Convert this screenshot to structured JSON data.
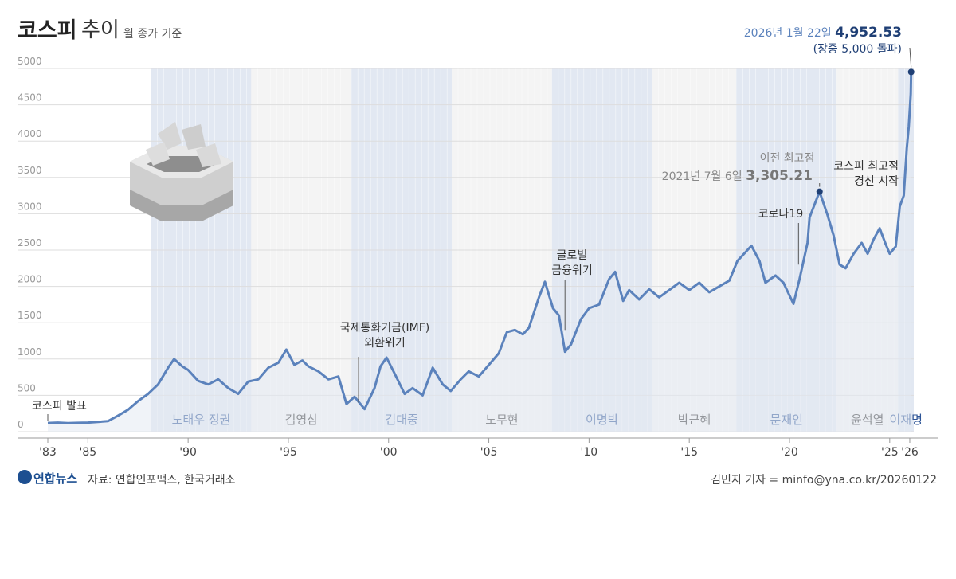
{
  "title": {
    "main": "코스피",
    "sub": "추이",
    "note": "월 종가 기준"
  },
  "footer": {
    "source": "자료: 연합인포맥스, 한국거래소",
    "credit": "김민지 기자 = minfo@yna.co.kr/20260122",
    "logo": "연합뉴스"
  },
  "colors": {
    "line": "#5b82bc",
    "fill": "#e4e9f3",
    "grid": "#dddddd",
    "stripe_light": "#f4f4f4",
    "stripe_blue": "#e2e8f2",
    "accent_dark": "#1f3f75"
  },
  "chart_data": {
    "type": "area",
    "title": "코스피 추이",
    "subtitle": "월 종가 기준",
    "xlabel": "",
    "ylabel": "",
    "xlim": [
      1983,
      2026.2
    ],
    "ylim": [
      0,
      5000
    ],
    "yticks": [
      0,
      500,
      1000,
      1500,
      2000,
      2500,
      3000,
      3500,
      4000,
      4500,
      5000
    ],
    "xticks": [
      {
        "value": 1983,
        "label": "'83"
      },
      {
        "value": 1985,
        "label": "'85"
      },
      {
        "value": 1990,
        "label": "'90"
      },
      {
        "value": 1995,
        "label": "'95"
      },
      {
        "value": 2000,
        "label": "'00"
      },
      {
        "value": 2005,
        "label": "'05"
      },
      {
        "value": 2010,
        "label": "'10"
      },
      {
        "value": 2015,
        "label": "'15"
      },
      {
        "value": 2020,
        "label": "'20"
      },
      {
        "value": 2025,
        "label": "'25"
      },
      {
        "value": 2026,
        "label": "'26"
      }
    ],
    "series": [
      {
        "name": "코스피",
        "points": [
          [
            1983.0,
            120
          ],
          [
            1983.5,
            125
          ],
          [
            1984.0,
            118
          ],
          [
            1984.5,
            122
          ],
          [
            1985.0,
            125
          ],
          [
            1985.5,
            135
          ],
          [
            1986.0,
            145
          ],
          [
            1986.5,
            220
          ],
          [
            1987.0,
            300
          ],
          [
            1987.5,
            420
          ],
          [
            1988.0,
            520
          ],
          [
            1988.5,
            650
          ],
          [
            1989.0,
            880
          ],
          [
            1989.3,
            1000
          ],
          [
            1989.7,
            900
          ],
          [
            1990.0,
            850
          ],
          [
            1990.5,
            700
          ],
          [
            1991.0,
            650
          ],
          [
            1991.5,
            720
          ],
          [
            1992.0,
            600
          ],
          [
            1992.5,
            520
          ],
          [
            1993.0,
            690
          ],
          [
            1993.5,
            720
          ],
          [
            1994.0,
            880
          ],
          [
            1994.5,
            950
          ],
          [
            1994.9,
            1130
          ],
          [
            1995.3,
            920
          ],
          [
            1995.7,
            980
          ],
          [
            1996.0,
            900
          ],
          [
            1996.5,
            830
          ],
          [
            1997.0,
            720
          ],
          [
            1997.5,
            760
          ],
          [
            1997.9,
            380
          ],
          [
            1998.3,
            480
          ],
          [
            1998.8,
            310
          ],
          [
            1999.3,
            600
          ],
          [
            1999.6,
            900
          ],
          [
            1999.9,
            1020
          ],
          [
            2000.3,
            800
          ],
          [
            2000.8,
            520
          ],
          [
            2001.2,
            600
          ],
          [
            2001.7,
            500
          ],
          [
            2002.2,
            880
          ],
          [
            2002.7,
            650
          ],
          [
            2003.1,
            560
          ],
          [
            2003.6,
            720
          ],
          [
            2004.0,
            830
          ],
          [
            2004.5,
            760
          ],
          [
            2005.0,
            920
          ],
          [
            2005.5,
            1080
          ],
          [
            2005.9,
            1370
          ],
          [
            2006.3,
            1400
          ],
          [
            2006.7,
            1340
          ],
          [
            2007.0,
            1430
          ],
          [
            2007.5,
            1850
          ],
          [
            2007.8,
            2064
          ],
          [
            2008.2,
            1700
          ],
          [
            2008.5,
            1600
          ],
          [
            2008.8,
            1100
          ],
          [
            2009.1,
            1200
          ],
          [
            2009.6,
            1550
          ],
          [
            2010.0,
            1700
          ],
          [
            2010.5,
            1750
          ],
          [
            2011.0,
            2100
          ],
          [
            2011.3,
            2200
          ],
          [
            2011.7,
            1800
          ],
          [
            2012.0,
            1950
          ],
          [
            2012.5,
            1820
          ],
          [
            2013.0,
            1960
          ],
          [
            2013.5,
            1850
          ],
          [
            2014.0,
            1950
          ],
          [
            2014.5,
            2050
          ],
          [
            2015.0,
            1950
          ],
          [
            2015.5,
            2050
          ],
          [
            2016.0,
            1920
          ],
          [
            2016.5,
            2000
          ],
          [
            2017.0,
            2080
          ],
          [
            2017.4,
            2350
          ],
          [
            2017.9,
            2500
          ],
          [
            2018.1,
            2560
          ],
          [
            2018.5,
            2350
          ],
          [
            2018.8,
            2050
          ],
          [
            2019.3,
            2150
          ],
          [
            2019.7,
            2050
          ],
          [
            2020.2,
            1760
          ],
          [
            2020.5,
            2100
          ],
          [
            2020.9,
            2600
          ],
          [
            2021.0,
            2950
          ],
          [
            2021.5,
            3305
          ],
          [
            2021.9,
            2980
          ],
          [
            2022.2,
            2700
          ],
          [
            2022.5,
            2300
          ],
          [
            2022.8,
            2250
          ],
          [
            2023.2,
            2450
          ],
          [
            2023.6,
            2600
          ],
          [
            2023.9,
            2450
          ],
          [
            2024.2,
            2650
          ],
          [
            2024.5,
            2800
          ],
          [
            2024.8,
            2580
          ],
          [
            2025.0,
            2450
          ],
          [
            2025.3,
            2550
          ],
          [
            2025.5,
            3100
          ],
          [
            2025.7,
            3250
          ],
          [
            2025.85,
            3900
          ],
          [
            2025.95,
            4200
          ],
          [
            2026.05,
            4650
          ],
          [
            2026.07,
            4952
          ]
        ]
      }
    ],
    "administrations": [
      {
        "name": "노태우 정권",
        "start": 1988.15,
        "end": 1993.15,
        "highlight": true
      },
      {
        "name": "김영삼",
        "start": 1993.15,
        "end": 1998.15,
        "highlight": false
      },
      {
        "name": "김대중",
        "start": 1998.15,
        "end": 2003.15,
        "highlight": true
      },
      {
        "name": "노무현",
        "start": 2003.15,
        "end": 2008.15,
        "highlight": false
      },
      {
        "name": "이명박",
        "start": 2008.15,
        "end": 2013.15,
        "highlight": true
      },
      {
        "name": "박근혜",
        "start": 2013.15,
        "end": 2017.35,
        "highlight": false
      },
      {
        "name": "문재인",
        "start": 2017.35,
        "end": 2022.35,
        "highlight": true
      },
      {
        "name": "윤석열",
        "start": 2022.35,
        "end": 2025.42,
        "highlight": false
      },
      {
        "name": "이재명",
        "start": 2025.42,
        "end": 2026.2,
        "highlight": true
      }
    ],
    "annotations": [
      {
        "id": "launch",
        "lines": [
          "코스피 발표"
        ],
        "x": 1983.0,
        "y": 120
      },
      {
        "id": "imf",
        "lines": [
          "국제통화기금(IMF)",
          "외환위기"
        ],
        "x": 1998.5,
        "y": 400
      },
      {
        "id": "gfc",
        "lines": [
          "글로벌",
          "금융위기"
        ],
        "x": 2008.8,
        "y": 1400
      },
      {
        "id": "covid",
        "lines": [
          "코로나19"
        ],
        "x": 2020.45,
        "y": 2300
      },
      {
        "id": "prev_high",
        "lines": [
          "이전 최고점"
        ],
        "x": 2021.5,
        "y": 3305
      },
      {
        "id": "new_high",
        "lines": [
          "코스피 최고점",
          "경신 시작"
        ],
        "x": 2025.7,
        "y": 3200
      }
    ],
    "highlights": [
      {
        "id": "prev_peak",
        "date": "2021년 7월 6일",
        "value": "3,305.21",
        "x": 2021.5,
        "y": 3305
      },
      {
        "id": "latest",
        "date": "2026년 1월 22일",
        "value": "4,952.53",
        "note": "(장중 5,000 돌파)",
        "x": 2026.07,
        "y": 4952
      }
    ]
  }
}
